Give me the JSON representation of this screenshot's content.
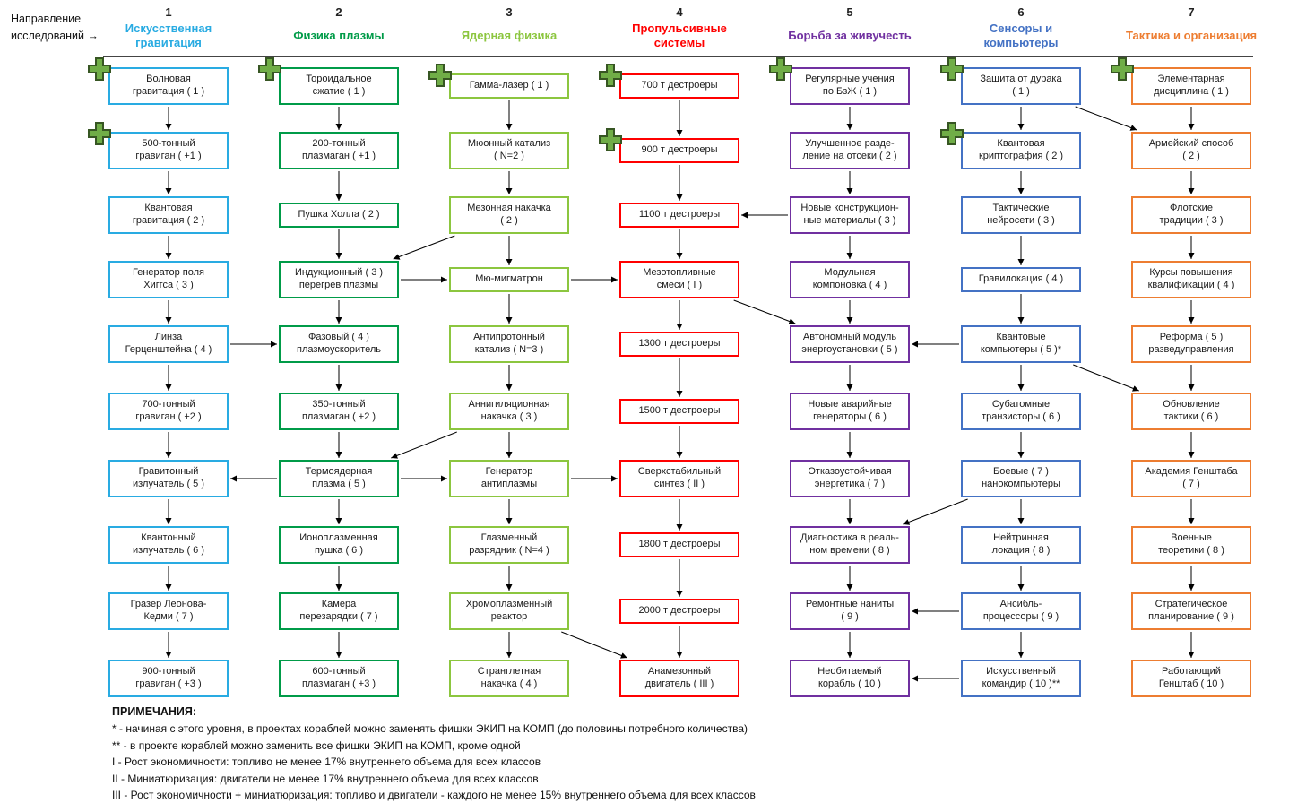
{
  "header": {
    "axis_label": "Направление\nисследований →"
  },
  "arrow_color": "#000000",
  "icons": {
    "plus_color": "#70AD47",
    "plus_outline": "#375623"
  },
  "columns": [
    {
      "number": "1",
      "title": "Искусственная гравитация",
      "color": "#29ABE2",
      "nodes": [
        {
          "label": "Волновая\nгравитация ( 1 )",
          "plus": true
        },
        {
          "label": "500-тонный\nгравиган ( +1 )",
          "plus": true
        },
        {
          "label": "Квантовая\nгравитация ( 2 )",
          "plus": false
        },
        {
          "label": "Генератор поля\nХиггса ( 3 )",
          "plus": false
        },
        {
          "label": "Линза\nГерценштейна ( 4 )",
          "plus": false
        },
        {
          "label": "700-тонный\nгравиган ( +2 )",
          "plus": false
        },
        {
          "label": "Гравитонный\nизлучатель ( 5 )",
          "plus": false
        },
        {
          "label": "Квантонный\nизлучатель ( 6 )",
          "plus": false
        },
        {
          "label": "Гразер Леонова-\nКедми ( 7 )",
          "plus": false
        },
        {
          "label": "900-тонный\nгравиган ( +3 )",
          "plus": false
        }
      ]
    },
    {
      "number": "2",
      "title": "Физика плазмы",
      "color": "#009B48",
      "nodes": [
        {
          "label": "Тороидальное\nсжатие ( 1 )",
          "plus": true
        },
        {
          "label": "200-тонный\nплазмаган ( +1 )",
          "plus": false
        },
        {
          "label": "Пушка Холла ( 2 )",
          "plus": false
        },
        {
          "label": "Индукционный ( 3 )\nперегрев плазмы",
          "plus": false
        },
        {
          "label": "Фазовый ( 4 )\nплазмоускоритель",
          "plus": false
        },
        {
          "label": "350-тонный\nплазмаган ( +2 )",
          "plus": false
        },
        {
          "label": "Термоядерная\nплазма ( 5 )",
          "plus": false
        },
        {
          "label": "Ионоплазменная\nпушка ( 6 )",
          "plus": false
        },
        {
          "label": "Камера\nперезарядки ( 7 )",
          "plus": false
        },
        {
          "label": "600-тонный\nплазмаган ( +3 )",
          "plus": false
        }
      ]
    },
    {
      "number": "3",
      "title": "Ядерная физика",
      "color": "#8CC63F",
      "nodes": [
        {
          "label": "Гамма-лазер ( 1 )",
          "plus": true
        },
        {
          "label": "Мюонный катализ\n( N=2 )",
          "plus": false
        },
        {
          "label": "Мезонная накачка\n( 2 )",
          "plus": false
        },
        {
          "label": "Мю-мигматрон",
          "plus": false
        },
        {
          "label": "Антипротонный\nкатализ ( N=3 )",
          "plus": false
        },
        {
          "label": "Аннигиляционная\nнакачка ( 3 )",
          "plus": false
        },
        {
          "label": "Генератор\nантиплазмы",
          "plus": false
        },
        {
          "label": "Глазменный\nразрядник ( N=4 )",
          "plus": false
        },
        {
          "label": "Хромоплазменный\nреактор",
          "plus": false
        },
        {
          "label": "Странглетная\nнакачка ( 4 )",
          "plus": false
        }
      ]
    },
    {
      "number": "4",
      "title": "Пропульсивные системы",
      "color": "#FF0000",
      "nodes": [
        {
          "label": "700 т дестроеры",
          "plus": true
        },
        {
          "label": "900 т дестроеры",
          "plus": true
        },
        {
          "label": "1100 т дестроеры",
          "plus": false
        },
        {
          "label": "Мезотопливные\nсмеси ( I )",
          "plus": false
        },
        {
          "label": "1300 т дестроеры",
          "plus": false
        },
        {
          "label": "1500 т дестроеры",
          "plus": false
        },
        {
          "label": "Сверхстабильный\nсинтез ( II )",
          "plus": false
        },
        {
          "label": "1800 т дестроеры",
          "plus": false
        },
        {
          "label": "2000 т дестроеры",
          "plus": false
        },
        {
          "label": "Анамезонный\nдвигатель ( III )",
          "plus": false
        }
      ]
    },
    {
      "number": "5",
      "title": "Борьба за живучесть",
      "color": "#7030A0",
      "nodes": [
        {
          "label": "Регулярные учения\nпо БзЖ ( 1 )",
          "plus": true
        },
        {
          "label": "Улучшенное разде-\nление на отсеки ( 2 )",
          "plus": false
        },
        {
          "label": "Новые конструкцион-\nные материалы ( 3 )",
          "plus": false
        },
        {
          "label": "Модульная\nкомпоновка ( 4 )",
          "plus": false
        },
        {
          "label": "Автономный модуль\nэнергоустановки ( 5 )",
          "plus": false
        },
        {
          "label": "Новые аварийные\nгенераторы ( 6 )",
          "plus": false
        },
        {
          "label": "Отказоустойчивая\nэнергетика ( 7 )",
          "plus": false
        },
        {
          "label": "Диагностика в реаль-\nном времени ( 8 )",
          "plus": false
        },
        {
          "label": "Ремонтные наниты\n( 9 )",
          "plus": false
        },
        {
          "label": "Необитаемый\nкорабль ( 10 )",
          "plus": false
        }
      ]
    },
    {
      "number": "6",
      "title": "Сенсоры и компьютеры",
      "color": "#4472C4",
      "nodes": [
        {
          "label": "Защита от дурака\n( 1 )",
          "plus": true
        },
        {
          "label": "Квантовая\nкриптография ( 2 )",
          "plus": true
        },
        {
          "label": "Тактические\nнейросети ( 3 )",
          "plus": false
        },
        {
          "label": "Гравилокация ( 4 )",
          "plus": false
        },
        {
          "label": "Квантовые\nкомпьютеры ( 5 )*",
          "plus": false
        },
        {
          "label": "Субатомные\nтранзисторы ( 6 )",
          "plus": false
        },
        {
          "label": "Боевые ( 7 )\nнанокомпьютеры",
          "plus": false
        },
        {
          "label": "Нейтринная\nлокация ( 8 )",
          "plus": false
        },
        {
          "label": "Ансибль-\nпроцессоры ( 9 )",
          "plus": false
        },
        {
          "label": "Искусственный\nкомандир ( 10 )**",
          "plus": false
        }
      ]
    },
    {
      "number": "7",
      "title": "Тактика и организация",
      "color": "#ED7D31",
      "nodes": [
        {
          "label": "Элементарная\nдисциплина ( 1 )",
          "plus": true
        },
        {
          "label": "Армейский способ\n( 2 )",
          "plus": false
        },
        {
          "label": "Флотские\nтрадиции ( 3 )",
          "plus": false
        },
        {
          "label": "Курсы повышения\nквалификации ( 4 )",
          "plus": false
        },
        {
          "label": "Реформа ( 5 )\nразведуправления",
          "plus": false
        },
        {
          "label": "Обновление\nтактики ( 6 )",
          "plus": false
        },
        {
          "label": "Академия Генштаба\n( 7 )",
          "plus": false
        },
        {
          "label": "Военные\nтеоретики ( 8 )",
          "plus": false
        },
        {
          "label": "Стратегическое\nпланирование ( 9 )",
          "plus": false
        },
        {
          "label": "Работающий\nГенштаб ( 10 )",
          "plus": false
        }
      ]
    }
  ],
  "cross_links": [
    {
      "from": [
        3,
        3
      ],
      "to": [
        2,
        4
      ]
    },
    {
      "from": [
        2,
        4
      ],
      "to": [
        3,
        4
      ]
    },
    {
      "from": [
        1,
        5
      ],
      "to": [
        2,
        5
      ]
    },
    {
      "from": [
        3,
        4
      ],
      "to": [
        4,
        4
      ]
    },
    {
      "from": [
        3,
        6
      ],
      "to": [
        2,
        7
      ]
    },
    {
      "from": [
        2,
        7
      ],
      "to": [
        1,
        7
      ]
    },
    {
      "from": [
        2,
        7
      ],
      "to": [
        3,
        7
      ]
    },
    {
      "from": [
        3,
        7
      ],
      "to": [
        4,
        7
      ]
    },
    {
      "from": [
        3,
        9
      ],
      "to": [
        4,
        10
      ]
    },
    {
      "from": [
        4,
        4
      ],
      "to": [
        5,
        5
      ]
    },
    {
      "from": [
        5,
        3
      ],
      "to": [
        4,
        3
      ]
    },
    {
      "from": [
        6,
        5
      ],
      "to": [
        5,
        5
      ]
    },
    {
      "from": [
        6,
        7
      ],
      "to": [
        5,
        8
      ]
    },
    {
      "from": [
        6,
        9
      ],
      "to": [
        5,
        9
      ]
    },
    {
      "from": [
        6,
        10
      ],
      "to": [
        5,
        10
      ]
    },
    {
      "from": [
        6,
        1
      ],
      "to": [
        7,
        2
      ]
    },
    {
      "from": [
        6,
        5
      ],
      "to": [
        7,
        6
      ]
    }
  ],
  "notes": {
    "title": "ПРИМЕЧАНИЯ:",
    "lines": [
      "* - начиная с этого уровня, в проектах кораблей можно заменять фишки ЭКИП на КОМП (до половины потребного количества)",
      "** - в проекте кораблей можно заменить все фишки ЭКИП на КОМП, кроме одной",
      "I - Рост экономичности: топливо не менее 17% внутреннего объема для всех классов",
      "II - Миниатюризация: двигатели не менее 17% внутреннего объема для всех классов",
      "III - Рост экономичности + миниатюризация: топливо и двигатели - каждого не менее 15% внутреннего объема для всех классов"
    ]
  }
}
